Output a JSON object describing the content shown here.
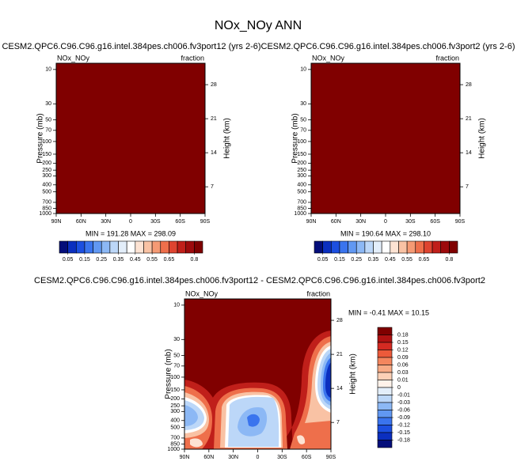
{
  "page_title": "NOx_NOy ANN",
  "chart_data": [
    {
      "type": "contour",
      "title": "CESM2.QPC6.C96.C96.g16.intel.384pes.ch006.fv3port12 (yrs 2-6)",
      "left_label": "NOx_NOy",
      "right_label": "fraction",
      "ylabel": "Pressure (mb)",
      "y2label": "Height (km)",
      "xticks": [
        "90N",
        "60N",
        "30N",
        "0",
        "30S",
        "60S",
        "90S"
      ],
      "yticks": [
        10,
        30,
        50,
        70,
        100,
        150,
        200,
        250,
        300,
        400,
        500,
        700,
        850,
        1000
      ],
      "ylim": [
        1000,
        8.2
      ],
      "log_y": true,
      "y2ticks": [
        28,
        21,
        14,
        7
      ],
      "y2lim": [
        1.5,
        32.4
      ],
      "stats": "MIN = 191.28  MAX = 298.09",
      "fill": "#800000",
      "colorbar": {
        "orientation": "horizontal",
        "lim": [
          0,
          0.85
        ],
        "levels": [
          0.05,
          0.15,
          0.25,
          0.35,
          0.45,
          0.55,
          0.65,
          0.8
        ],
        "colors": [
          "#040e7a",
          "#0b2fbf",
          "#1c4fe0",
          "#3a74ee",
          "#6198f2",
          "#8cb8f5",
          "#bcd7f8",
          "#e3eefa",
          "#ffffff",
          "#fde3d3",
          "#f9c2a4",
          "#f59a74",
          "#ee6f4b",
          "#de4430",
          "#c01f1a",
          "#9d0a0c",
          "#7f0000"
        ]
      }
    },
    {
      "type": "contour",
      "title": "CESM2.QPC6.C96.C96.g16.intel.384pes.ch006.fv3port2 (yrs 2-6)",
      "left_label": "NOx_NOy",
      "right_label": "fraction",
      "ylabel": "Pressure (mb)",
      "y2label": "Height (km)",
      "xticks": [
        "90N",
        "60N",
        "30N",
        "0",
        "30S",
        "60S",
        "90S"
      ],
      "yticks": [
        10,
        30,
        50,
        70,
        100,
        150,
        200,
        250,
        300,
        400,
        500,
        700,
        850,
        1000
      ],
      "ylim": [
        1000,
        8.2
      ],
      "log_y": true,
      "y2ticks": [
        28,
        21,
        14,
        7
      ],
      "y2lim": [
        1.5,
        32.4
      ],
      "stats": "MIN = 190.64  MAX = 298.10",
      "fill": "#800000",
      "colorbar": {
        "orientation": "horizontal",
        "lim": [
          0,
          0.85
        ],
        "levels": [
          0.05,
          0.15,
          0.25,
          0.35,
          0.45,
          0.55,
          0.65,
          0.8
        ],
        "colors": [
          "#040e7a",
          "#0b2fbf",
          "#1c4fe0",
          "#3a74ee",
          "#6198f2",
          "#8cb8f5",
          "#bcd7f8",
          "#e3eefa",
          "#ffffff",
          "#fde3d3",
          "#f9c2a4",
          "#f59a74",
          "#ee6f4b",
          "#de4430",
          "#c01f1a",
          "#9d0a0c",
          "#7f0000"
        ]
      }
    },
    {
      "type": "contour",
      "title": "CESM2.QPC6.C96.C96.g16.intel.384pes.ch006.fv3port12 - CESM2.QPC6.C96.C96.g16.intel.384pes.ch006.fv3port2",
      "left_label": "NOx_NOy",
      "right_label": "fraction",
      "ylabel": "Pressure (mb)",
      "y2label": "Height (km)",
      "xticks": [
        "90N",
        "60N",
        "30N",
        "0",
        "30S",
        "60S",
        "90S"
      ],
      "yticks": [
        10,
        30,
        50,
        70,
        100,
        150,
        200,
        250,
        300,
        400,
        500,
        700,
        850,
        1000
      ],
      "ylim": [
        1000,
        8.2
      ],
      "log_y": true,
      "y2ticks": [
        28,
        21,
        14,
        7
      ],
      "y2lim": [
        1.5,
        32.4
      ],
      "stats": "MIN = -0.41  MAX = 10.15",
      "fill": "#800000",
      "colorbar": {
        "orientation": "vertical",
        "levels": [
          0.18,
          0.15,
          0.12,
          0.09,
          0.06,
          0.03,
          0.01,
          0,
          -0.01,
          -0.03,
          -0.06,
          -0.09,
          -0.12,
          -0.15,
          -0.18
        ],
        "colors": [
          "#7f0000",
          "#b01212",
          "#d42a22",
          "#ec5a3a",
          "#f4865e",
          "#f8ab86",
          "#fcd0b6",
          "#fff2ea",
          "#e3eefa",
          "#bcd7f8",
          "#8cb8f5",
          "#6198f2",
          "#3a74ee",
          "#1c4fe0",
          "#0b2fbf",
          "#040e7a"
        ]
      }
    }
  ]
}
